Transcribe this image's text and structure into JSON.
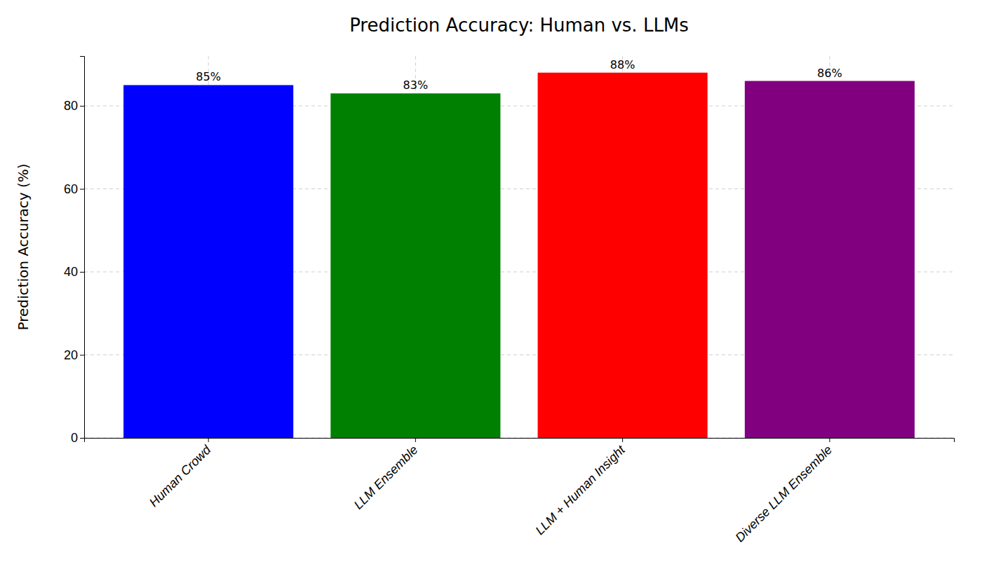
{
  "chart_data": {
    "type": "bar",
    "title": "Prediction Accuracy: Human vs. LLMs",
    "categories": [
      "Human Crowd",
      "LLM Ensemble",
      "LLM + Human Insight",
      "Diverse LLM Ensemble"
    ],
    "values": [
      85,
      83,
      88,
      86
    ],
    "value_labels": [
      "85%",
      "83%",
      "88%",
      "86%"
    ],
    "colors": [
      "#0000ff",
      "#008000",
      "#ff0000",
      "#800080"
    ],
    "ylabel": "Prediction Accuracy (%)",
    "ylim": [
      0,
      92
    ],
    "yticks": [
      0,
      20,
      40,
      60,
      80
    ],
    "grid": true,
    "data_labels": true
  }
}
